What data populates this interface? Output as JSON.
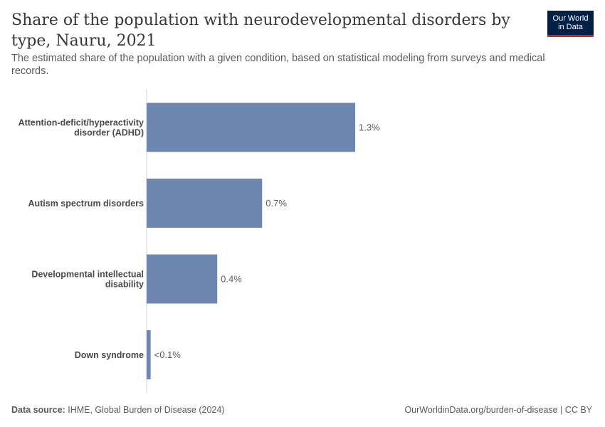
{
  "header": {
    "title": "Share of the population with neurodevelopmental disorders by type, Nauru, 2021",
    "subtitle": "The estimated share of the population with a given condition, based on statistical modeling from surveys and medical records."
  },
  "logo": {
    "line1": "Our World",
    "line2": "in Data",
    "bg_color": "#002147",
    "accent_color": "#ce261e"
  },
  "chart_data": {
    "type": "bar",
    "orientation": "horizontal",
    "categories": [
      [
        "Attention-deficit/hyperactivity",
        "disorder (ADHD)"
      ],
      [
        "Autism spectrum disorders"
      ],
      [
        "Developmental intellectual",
        "disability"
      ],
      [
        "Down syndrome"
      ]
    ],
    "values": [
      1.3,
      0.72,
      0.44,
      0.025
    ],
    "value_labels": [
      "1.3%",
      "0.7%",
      "0.4%",
      "<0.1%"
    ],
    "xlim": [
      0,
      1.3
    ],
    "bar_color": "#6d87b0",
    "grid": false
  },
  "footer": {
    "source_label": "Data source:",
    "source_text": "IHME, Global Burden of Disease (2024)",
    "url_text": "OurWorldinData.org/burden-of-disease | CC BY"
  }
}
